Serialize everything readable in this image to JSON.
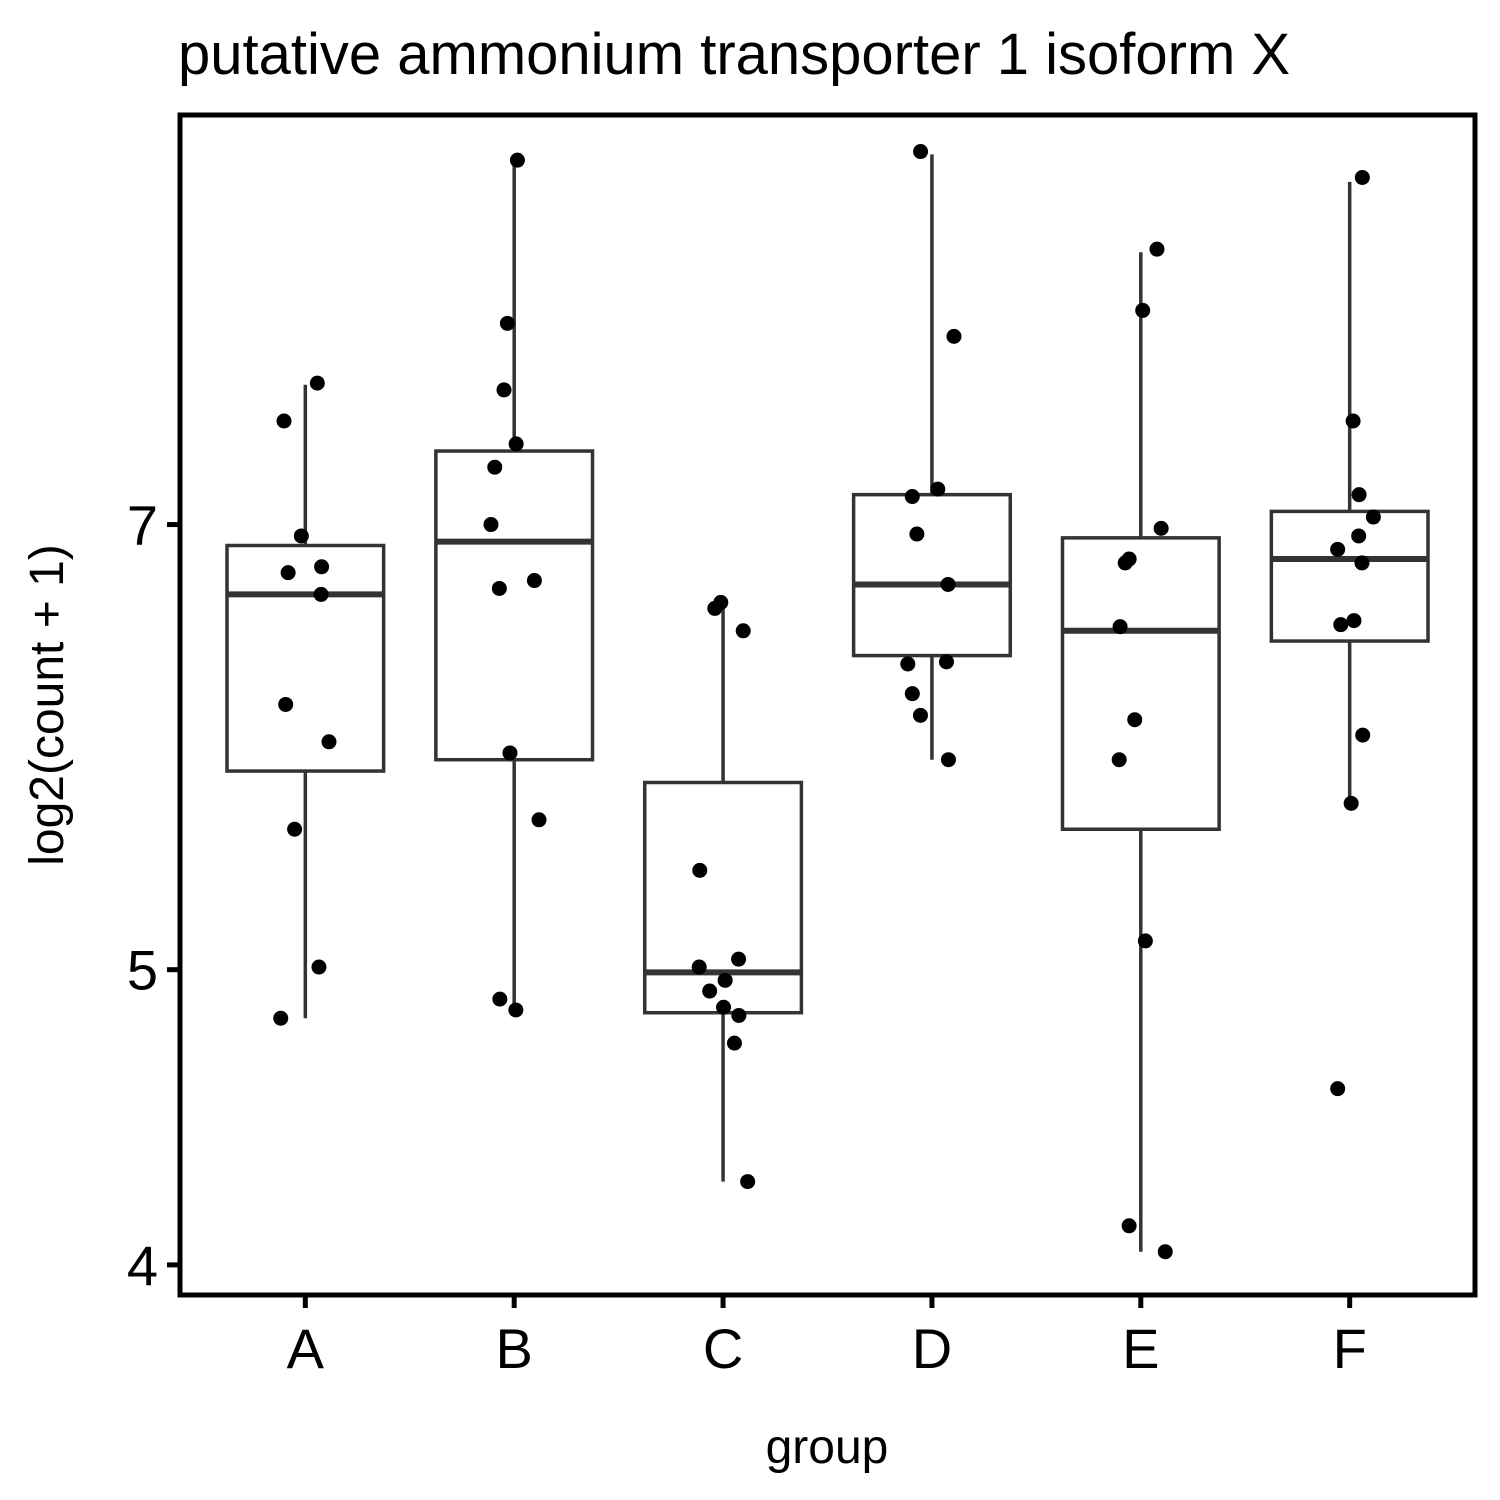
{
  "chart_data": {
    "type": "boxplot",
    "title": "putative ammonium transporter 1 isoform X",
    "xlabel": "group",
    "ylabel": "log2(count + 1)",
    "y_scale": "log2",
    "ylim": [
      3.91,
      9.54
    ],
    "yticks": [
      4,
      5,
      7
    ],
    "categories": [
      "A",
      "B",
      "C",
      "D",
      "E",
      "F"
    ],
    "boxes": [
      {
        "group": "A",
        "whisker_low": 4.82,
        "q1": 5.81,
        "median": 6.64,
        "q3": 6.89,
        "whisker_high": 7.78
      },
      {
        "group": "B",
        "whisker_low": 4.87,
        "q1": 5.86,
        "median": 6.91,
        "q3": 7.4,
        "whisker_high": 9.2
      },
      {
        "group": "C",
        "whisker_low": 4.26,
        "q1": 4.84,
        "median": 4.99,
        "q3": 5.76,
        "whisker_high": 6.57
      },
      {
        "group": "D",
        "whisker_low": 5.86,
        "q1": 6.34,
        "median": 6.69,
        "q3": 7.16,
        "whisker_high": 9.26
      },
      {
        "group": "E",
        "whisker_low": 4.04,
        "q1": 5.56,
        "median": 6.46,
        "q3": 6.93,
        "whisker_high": 8.6
      },
      {
        "group": "F",
        "whisker_low": 5.65,
        "q1": 6.41,
        "median": 6.82,
        "q3": 7.07,
        "whisker_high": 9.07
      }
    ],
    "points": [
      {
        "group": "A",
        "values": [
          7.79,
          7.57,
          6.94,
          6.78,
          6.75,
          6.64,
          6.11,
          5.94,
          5.56,
          5.01,
          4.82
        ]
      },
      {
        "group": "B",
        "values": [
          9.22,
          8.15,
          7.75,
          7.44,
          7.31,
          7.0,
          6.71,
          6.67,
          5.89,
          5.6,
          4.89,
          4.85
        ]
      },
      {
        "group": "C",
        "values": [
          6.6,
          6.57,
          6.46,
          5.39,
          5.04,
          5.01,
          4.96,
          4.92,
          4.86,
          4.83,
          4.73,
          4.26
        ]
      },
      {
        "group": "D",
        "values": [
          9.28,
          8.07,
          7.19,
          7.15,
          6.95,
          6.69,
          6.31,
          6.3,
          6.16,
          6.06,
          5.86
        ]
      },
      {
        "group": "E",
        "values": [
          8.62,
          8.23,
          6.98,
          6.82,
          6.8,
          6.48,
          6.04,
          5.86,
          5.11,
          4.12,
          4.04
        ]
      },
      {
        "group": "F",
        "values": [
          9.1,
          7.57,
          7.16,
          7.04,
          6.94,
          6.87,
          6.8,
          6.51,
          6.49,
          5.97,
          5.67,
          4.57
        ]
      }
    ],
    "grid": false,
    "legend": "none"
  }
}
